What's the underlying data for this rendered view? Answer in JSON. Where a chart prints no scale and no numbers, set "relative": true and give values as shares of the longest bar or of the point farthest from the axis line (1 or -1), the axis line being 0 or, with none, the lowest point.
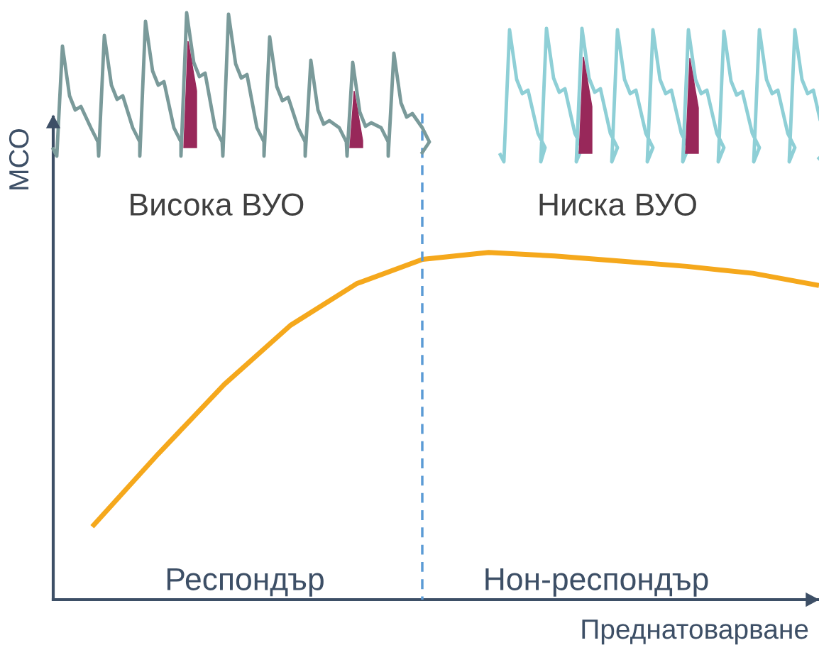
{
  "chart_data": {
    "type": "line",
    "relative": true,
    "xlabel": "Преднатоварване",
    "ylabel": "МСО",
    "categories": [
      null,
      null,
      null,
      null,
      null,
      null,
      null,
      null,
      null,
      null,
      null,
      null
    ],
    "series": [
      {
        "color": "#f5a81c",
        "values": [
          0.21,
          0.42,
          0.62,
          0.79,
          0.91,
          0.98,
          1.0,
          0.99,
          0.975,
          0.96,
          0.94,
          0.905
        ]
      }
    ],
    "annotations": [
      "Висока ВУО",
      "Ниска ВУО",
      "Респондър",
      "Нон-респондър"
    ],
    "grid": false,
    "legend": false,
    "marker": "none",
    "line_style": "solid"
  }
}
